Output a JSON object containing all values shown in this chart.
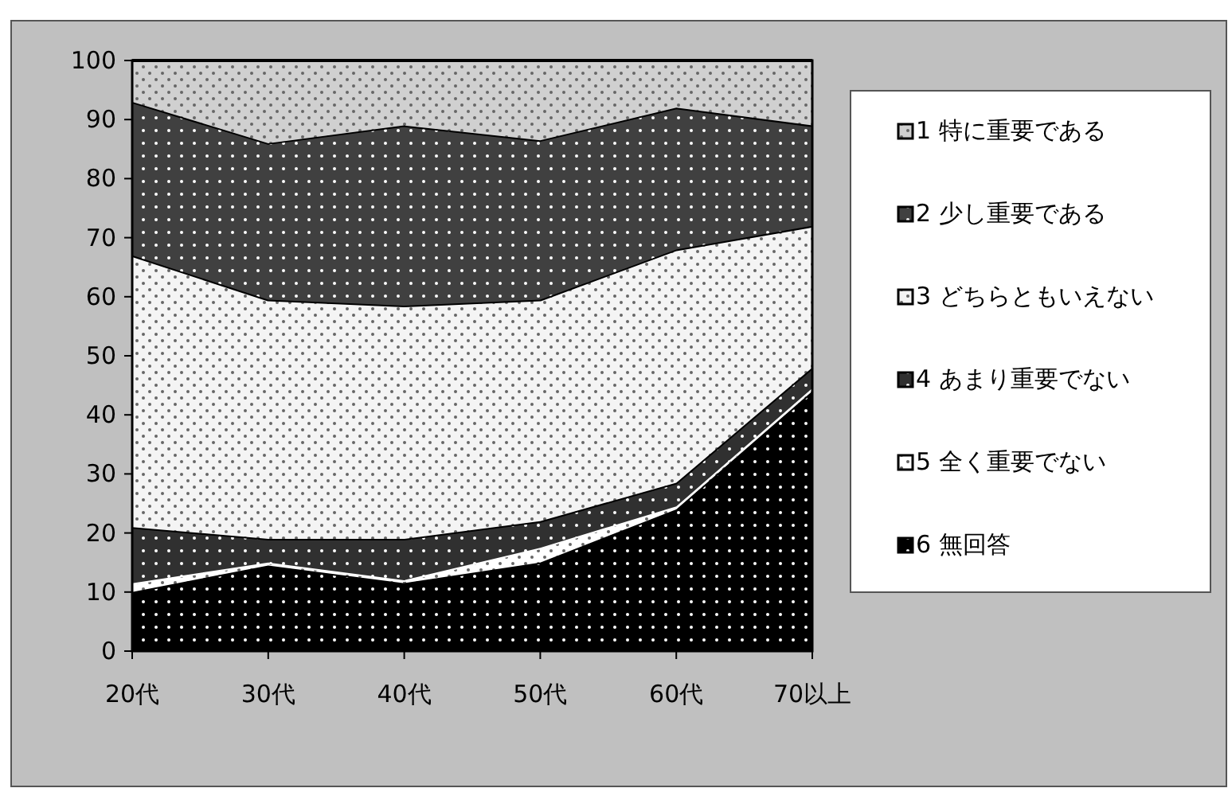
{
  "chart_data": {
    "type": "area",
    "stacked": true,
    "categories": [
      "20代",
      "30代",
      "40代",
      "50代",
      "60代",
      "70以上"
    ],
    "series": [
      {
        "name": "6 無回答",
        "color": "#000000",
        "values": [
          10,
          14.5,
          11.5,
          15,
          24,
          44
        ]
      },
      {
        "name": "5 全く重要でない",
        "color": "#ffffff",
        "values": [
          1.5,
          0.5,
          0.5,
          2.5,
          0.5,
          0.5
        ]
      },
      {
        "name": "4 あまり重要でない",
        "color": "#303030",
        "values": [
          9.5,
          4,
          7,
          4.5,
          4,
          3.5
        ]
      },
      {
        "name": "3 どちらともいえない",
        "color": "#f4f4f4",
        "values": [
          46,
          40.5,
          39.5,
          37.5,
          39.5,
          24
        ]
      },
      {
        "name": "2 少し重要である",
        "color": "#404040",
        "values": [
          26,
          26.5,
          30.5,
          27,
          24,
          17
        ]
      },
      {
        "name": "1 特に重要である",
        "color": "#d0d0d0",
        "values": [
          7,
          14,
          11,
          13.5,
          8,
          11
        ]
      }
    ],
    "ylim": [
      0,
      100
    ],
    "yticks": [
      0,
      10,
      20,
      30,
      40,
      50,
      60,
      70,
      80,
      90,
      100
    ],
    "legend": "right"
  }
}
